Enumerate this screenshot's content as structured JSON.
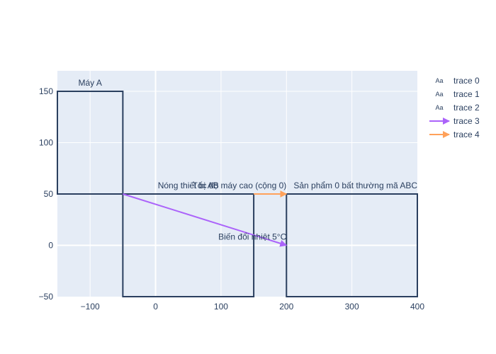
{
  "chart_data": {
    "type": "line",
    "xlim": [
      -150,
      400
    ],
    "ylim": [
      -50,
      170
    ],
    "xticks": [
      -100,
      0,
      100,
      200,
      300,
      400
    ],
    "xtick_labels": [
      "−100",
      "0",
      "100",
      "200",
      "300",
      "400"
    ],
    "yticks": [
      -50,
      0,
      50,
      100,
      150
    ],
    "ytick_labels": [
      "−50",
      "0",
      "50",
      "100",
      "150"
    ],
    "grid": true,
    "legend_position": "right",
    "colors": {
      "plot_bg": "#E5ECF6",
      "grid": "#ffffff",
      "shape_line": "#2a3f5f",
      "text": "#2a3f5f",
      "trace3": "#AB63FA",
      "trace4": "#FFA15A"
    },
    "shapes": [
      {
        "x0": -150,
        "x1": -50,
        "y0": 50,
        "y1": 150
      },
      {
        "x0": -50,
        "x1": 150,
        "y0": -50,
        "y1": 50
      },
      {
        "x0": 200,
        "x1": 400,
        "y0": -50,
        "y1": 50
      }
    ],
    "annotations": [
      {
        "text": "Máy A",
        "x": -100,
        "y": 150,
        "anchor": "middle"
      },
      {
        "text": "Nóng thiết bị AB",
        "x": 50,
        "y": 50,
        "anchor": "middle"
      },
      {
        "text": "Tốc độ máy cao (cộng 0)",
        "x": 200,
        "y": 50,
        "anchor": "end"
      },
      {
        "text": "Sản phẩm 0 bất thường mã ABC",
        "x": 400,
        "y": 50,
        "anchor": "end"
      },
      {
        "text": "Biến đổi nhiệt 5°C",
        "x": 200,
        "y": 0,
        "anchor": "end"
      }
    ],
    "series": [
      {
        "name": "trace 0",
        "mode": "text",
        "legend_symbol": "Aa"
      },
      {
        "name": "trace 1",
        "mode": "text",
        "legend_symbol": "Aa"
      },
      {
        "name": "trace 2",
        "mode": "text",
        "legend_symbol": "Aa"
      },
      {
        "name": "trace 3",
        "mode": "lines+arrow",
        "x": [
          -50,
          200
        ],
        "y": [
          50,
          0
        ]
      },
      {
        "name": "trace 4",
        "mode": "lines+arrow",
        "x": [
          150,
          200
        ],
        "y": [
          50,
          50
        ]
      }
    ]
  }
}
